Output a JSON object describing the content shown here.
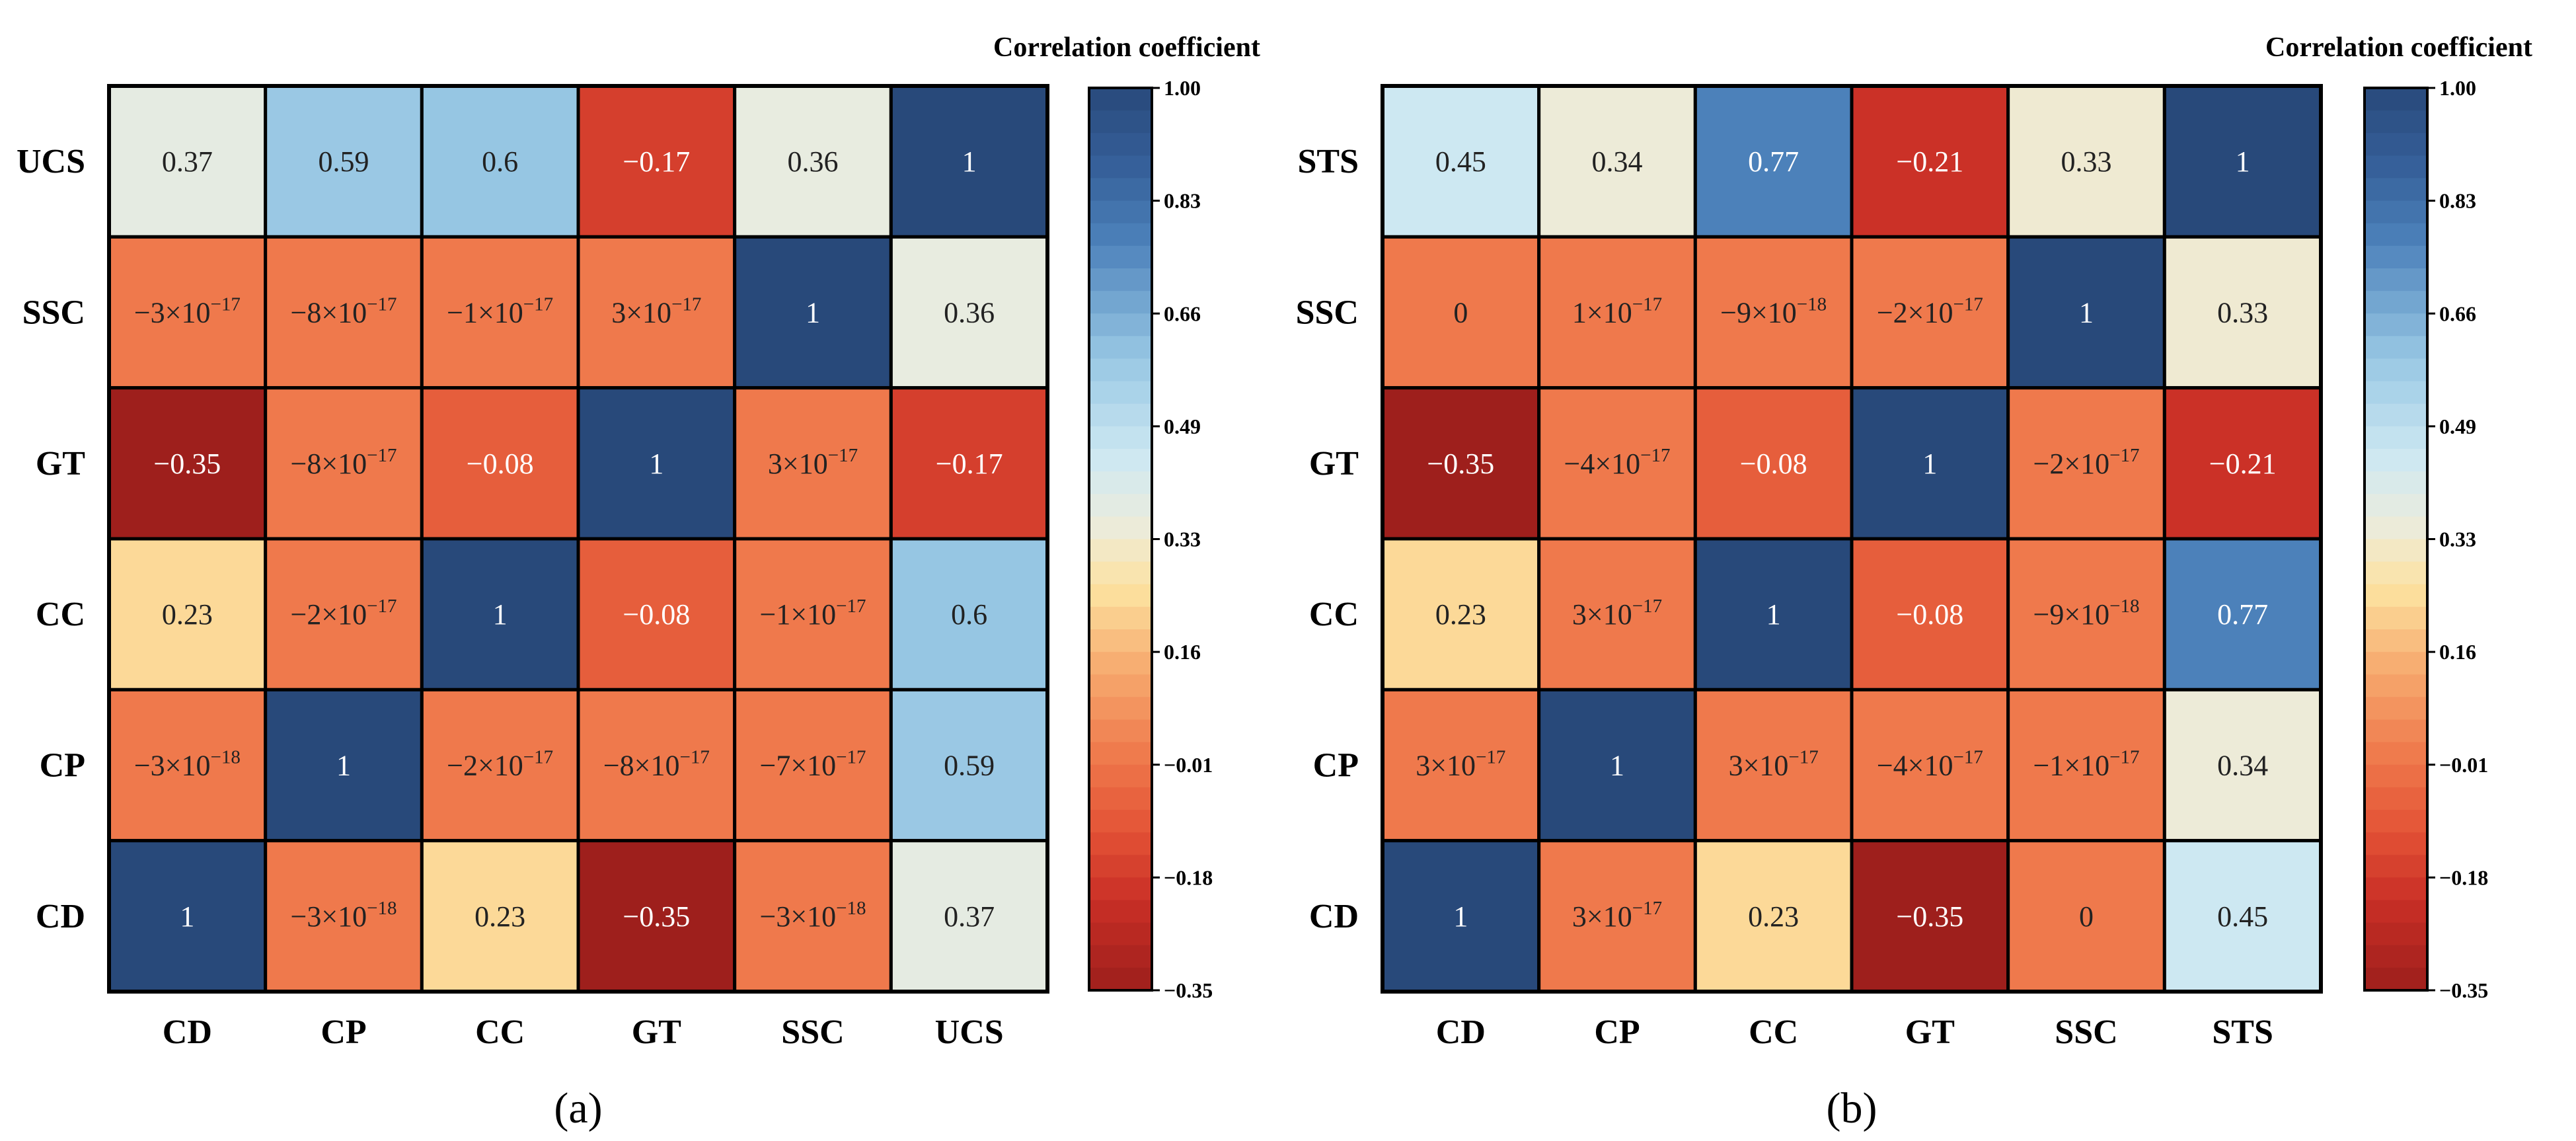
{
  "chart_data": [
    {
      "type": "heatmap",
      "panel_label": "(a)",
      "x_labels": [
        "CD",
        "CP",
        "CC",
        "GT",
        "SSC",
        "UCS"
      ],
      "y_labels_top_to_bottom": [
        "UCS",
        "SSC",
        "GT",
        "CC",
        "CP",
        "CD"
      ],
      "values": [
        [
          0.37,
          0.59,
          0.6,
          -0.17,
          0.36,
          1
        ],
        [
          -3e-17,
          -8e-17,
          -1e-17,
          3e-17,
          1,
          0.36
        ],
        [
          -0.35,
          -8e-17,
          -0.08,
          1,
          3e-17,
          -0.17
        ],
        [
          0.23,
          -2e-17,
          1,
          -0.08,
          -1e-17,
          0.6
        ],
        [
          -3e-18,
          1,
          -2e-17,
          -8e-17,
          -7e-17,
          0.59
        ],
        [
          1,
          -3e-18,
          0.23,
          -0.35,
          -3e-18,
          0.37
        ]
      ],
      "cell_labels": [
        [
          {
            "m": "0.37"
          },
          {
            "m": "0.59"
          },
          {
            "m": "0.6"
          },
          {
            "m": "−0.17"
          },
          {
            "m": "0.36"
          },
          {
            "m": "1"
          }
        ],
        [
          {
            "m": "−3×10",
            "e": "−17"
          },
          {
            "m": "−8×10",
            "e": "−17"
          },
          {
            "m": "−1×10",
            "e": "−17"
          },
          {
            "m": "3×10",
            "e": "−17"
          },
          {
            "m": "1"
          },
          {
            "m": "0.36"
          }
        ],
        [
          {
            "m": "−0.35"
          },
          {
            "m": "−8×10",
            "e": "−17"
          },
          {
            "m": "−0.08"
          },
          {
            "m": "1"
          },
          {
            "m": "3×10",
            "e": "−17"
          },
          {
            "m": "−0.17"
          }
        ],
        [
          {
            "m": "0.23"
          },
          {
            "m": "−2×10",
            "e": "−17"
          },
          {
            "m": "1"
          },
          {
            "m": "−0.08"
          },
          {
            "m": "−1×10",
            "e": "−17"
          },
          {
            "m": "0.6"
          }
        ],
        [
          {
            "m": "−3×10",
            "e": "−18"
          },
          {
            "m": "1"
          },
          {
            "m": "−2×10",
            "e": "−17"
          },
          {
            "m": "−8×10",
            "e": "−17"
          },
          {
            "m": "−7×10",
            "e": "−17"
          },
          {
            "m": "0.59"
          }
        ],
        [
          {
            "m": "1"
          },
          {
            "m": "−3×10",
            "e": "−18"
          },
          {
            "m": "0.23"
          },
          {
            "m": "−0.35"
          },
          {
            "m": "−3×10",
            "e": "−18"
          },
          {
            "m": "0.37"
          }
        ]
      ],
      "colorbar": {
        "title": "Correlation coefficient",
        "range": [
          -0.35,
          1.0
        ],
        "ticks": [
          "1.00",
          "0.83",
          "0.66",
          "0.49",
          "0.33",
          "0.16",
          "−0.01",
          "−0.18",
          "−0.35"
        ]
      }
    },
    {
      "type": "heatmap",
      "panel_label": "(b)",
      "x_labels": [
        "CD",
        "CP",
        "CC",
        "GT",
        "SSC",
        "STS"
      ],
      "y_labels_top_to_bottom": [
        "STS",
        "SSC",
        "GT",
        "CC",
        "CP",
        "CD"
      ],
      "values": [
        [
          0.45,
          0.34,
          0.77,
          -0.21,
          0.33,
          1
        ],
        [
          0,
          1e-17,
          -9e-18,
          -2e-17,
          1,
          0.33
        ],
        [
          -0.35,
          -4e-17,
          -0.08,
          1,
          -2e-17,
          -0.21
        ],
        [
          0.23,
          3e-17,
          1,
          -0.08,
          -9e-18,
          0.77
        ],
        [
          3e-17,
          1,
          3e-17,
          -4e-17,
          -1e-17,
          0.34
        ],
        [
          1,
          3e-17,
          0.23,
          -0.35,
          0,
          0.45
        ]
      ],
      "cell_labels": [
        [
          {
            "m": "0.45"
          },
          {
            "m": "0.34"
          },
          {
            "m": "0.77"
          },
          {
            "m": "−0.21"
          },
          {
            "m": "0.33"
          },
          {
            "m": "1"
          }
        ],
        [
          {
            "m": "0"
          },
          {
            "m": "1×10",
            "e": "−17"
          },
          {
            "m": "−9×10",
            "e": "−18"
          },
          {
            "m": "−2×10",
            "e": "−17"
          },
          {
            "m": "1"
          },
          {
            "m": "0.33"
          }
        ],
        [
          {
            "m": "−0.35"
          },
          {
            "m": "−4×10",
            "e": "−17"
          },
          {
            "m": "−0.08"
          },
          {
            "m": "1"
          },
          {
            "m": "−2×10",
            "e": "−17"
          },
          {
            "m": "−0.21"
          }
        ],
        [
          {
            "m": "0.23"
          },
          {
            "m": "3×10",
            "e": "−17"
          },
          {
            "m": "1"
          },
          {
            "m": "−0.08"
          },
          {
            "m": "−9×10",
            "e": "−18"
          },
          {
            "m": "0.77"
          }
        ],
        [
          {
            "m": "3×10",
            "e": "−17"
          },
          {
            "m": "1"
          },
          {
            "m": "3×10",
            "e": "−17"
          },
          {
            "m": "−4×10",
            "e": "−17"
          },
          {
            "m": "−1×10",
            "e": "−17"
          },
          {
            "m": "0.34"
          }
        ],
        [
          {
            "m": "1"
          },
          {
            "m": "3×10",
            "e": "−17"
          },
          {
            "m": "0.23"
          },
          {
            "m": "−0.35"
          },
          {
            "m": "0"
          },
          {
            "m": "0.45"
          }
        ]
      ],
      "colorbar": {
        "title": "Correlation coefficient",
        "range": [
          -0.35,
          1.0
        ],
        "ticks": [
          "1.00",
          "0.83",
          "0.66",
          "0.49",
          "0.33",
          "0.16",
          "−0.01",
          "−0.18",
          "−0.35"
        ]
      }
    }
  ],
  "colors": {
    "dark_red": "#9e1f1c",
    "red": "#d73027",
    "orange": "#f07c4a",
    "light_orange": "#f5a86e",
    "yellow": "#fde6a0",
    "pale": "#e8edf1",
    "light_blue": "#9cc9e4",
    "blue": "#4a7fb8",
    "dark_blue": "#28497a",
    "text_light": "#ffffff",
    "text_dark": "#222222"
  }
}
